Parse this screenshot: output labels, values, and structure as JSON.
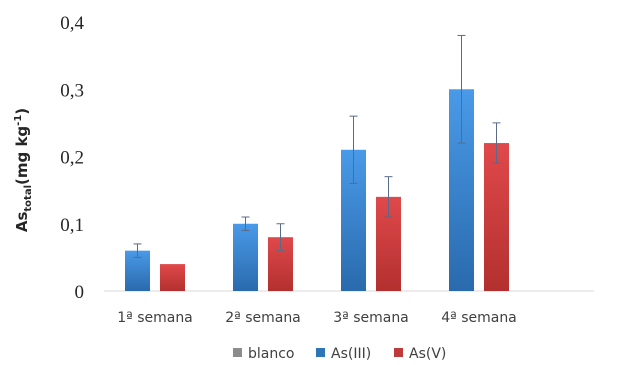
{
  "chart_data": {
    "type": "bar",
    "categories": [
      "1ª semana",
      "2ª semana",
      "3ª semana",
      "4ª semana"
    ],
    "series": [
      {
        "name": "blanco",
        "color": "#8c8c8c",
        "values": [
          0,
          0,
          0,
          0
        ],
        "error": [
          0,
          0,
          0,
          0
        ]
      },
      {
        "name": "As(III)",
        "color": "#2e75b6",
        "values": [
          0.06,
          0.1,
          0.21,
          0.3
        ],
        "error": [
          0.01,
          0.01,
          0.05,
          0.08
        ]
      },
      {
        "name": "As(V)",
        "color": "#c0393b",
        "values": [
          0.04,
          0.08,
          0.14,
          0.22
        ],
        "error": [
          0,
          0.02,
          0.03,
          0.03
        ]
      }
    ],
    "ylim": [
      0,
      0.4
    ],
    "yticks": [
      0,
      0.1,
      0.2,
      0.3,
      0.4
    ],
    "ytick_labels": [
      "0",
      "0,1",
      "0,2",
      "0,3",
      "0,4"
    ],
    "ylabel": {
      "main": "As",
      "sub": "total",
      "unit": "(mg kg",
      "sup": "-1",
      "close": ")"
    },
    "grid": false,
    "legend_position": "bottom"
  }
}
